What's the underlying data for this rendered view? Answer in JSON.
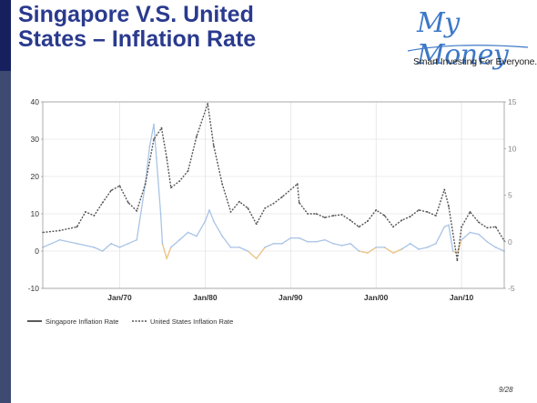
{
  "slide": {
    "title_line1": "Singapore V.S. United",
    "title_line2": "States – Inflation Rate",
    "page_number": "9/28"
  },
  "logo": {
    "word": "My Money",
    "tagline": "Smart Investing For Everyone."
  },
  "colors": {
    "title": "#2a3a8e",
    "sidebar": "#3f4a73",
    "singapore_line": "#a9c4e6",
    "singapore_negative": "#f1c987",
    "us_line": "#555555"
  },
  "chart_data": {
    "type": "line",
    "left_axis": {
      "ylim": [
        -10,
        40
      ],
      "ticks": [
        -10,
        0,
        10,
        20,
        30,
        40
      ]
    },
    "right_axis": {
      "ylim": [
        -5,
        15
      ],
      "ticks": [
        -5,
        0,
        5,
        10,
        15
      ]
    },
    "x_axis": {
      "xlim": [
        1961,
        2015
      ],
      "ticks": [
        1970,
        1980,
        1990,
        2000,
        2010
      ],
      "tick_labels": [
        "Jan/70",
        "Jan/80",
        "Jan/90",
        "Jan/00",
        "Jan/10"
      ]
    },
    "grid": true,
    "legend_position": "bottom-left",
    "series": [
      {
        "name": "Singapore Inflation Rate",
        "axis": "left",
        "style": "solid",
        "x": [
          1961,
          1963,
          1965,
          1967,
          1968,
          1969,
          1970,
          1971,
          1972,
          1973,
          1973.5,
          1974,
          1974.3,
          1974.8,
          1975,
          1975.5,
          1976,
          1977,
          1978,
          1979,
          1980,
          1980.5,
          1981,
          1982,
          1983,
          1984,
          1985,
          1986,
          1987,
          1988,
          1989,
          1990,
          1991,
          1992,
          1993,
          1994,
          1995,
          1996,
          1997,
          1998,
          1999,
          2000,
          2001,
          2002,
          2003,
          2004,
          2005,
          2006,
          2007,
          2008,
          2008.5,
          2009,
          2009.5,
          2010,
          2011,
          2012,
          2013,
          2014,
          2015
        ],
        "y": [
          1,
          3,
          2,
          1,
          0,
          2,
          1,
          2,
          3,
          18,
          28,
          34,
          25,
          10,
          2,
          -2,
          1,
          3,
          5,
          4,
          8,
          11,
          8,
          4,
          1,
          1,
          0,
          -2,
          1,
          2,
          2,
          3.5,
          3.5,
          2.5,
          2.5,
          3,
          2,
          1.5,
          2,
          0,
          -0.5,
          1,
          1,
          -0.5,
          0.5,
          2,
          0.5,
          1,
          2,
          6.5,
          7,
          0,
          -0.5,
          3,
          5,
          4.5,
          2.5,
          1,
          0
        ]
      },
      {
        "name": "United States Inflation Rate",
        "axis": "right",
        "style": "dashed",
        "x": [
          1961,
          1963,
          1965,
          1966,
          1967,
          1968,
          1969,
          1970,
          1971,
          1972,
          1973,
          1974,
          1974.9,
          1975.5,
          1976,
          1977,
          1978,
          1979,
          1980.3,
          1981,
          1982,
          1983,
          1984,
          1985,
          1986,
          1987,
          1988,
          1989,
          1990.8,
          1991,
          1992,
          1993,
          1994,
          1995,
          1996,
          1997,
          1998,
          1999,
          2000,
          2001,
          2002,
          2003,
          2004,
          2005,
          2006,
          2007,
          2008,
          2008.5,
          2009.5,
          2010,
          2011,
          2012,
          2013,
          2014,
          2015
        ],
        "y": [
          1,
          1.2,
          1.6,
          3.2,
          2.8,
          4.2,
          5.5,
          6,
          4.2,
          3.3,
          6.2,
          11,
          12.2,
          9,
          5.8,
          6.5,
          7.6,
          11.3,
          14.8,
          10.3,
          6.2,
          3.2,
          4.3,
          3.6,
          1.9,
          3.6,
          4.1,
          4.8,
          6.2,
          4.2,
          3,
          3,
          2.6,
          2.8,
          2.9,
          2.3,
          1.6,
          2.2,
          3.4,
          2.8,
          1.6,
          2.3,
          2.7,
          3.4,
          3.2,
          2.8,
          5.6,
          3.8,
          -2,
          1.6,
          3.2,
          2.1,
          1.5,
          1.6,
          0.1
        ]
      }
    ]
  }
}
